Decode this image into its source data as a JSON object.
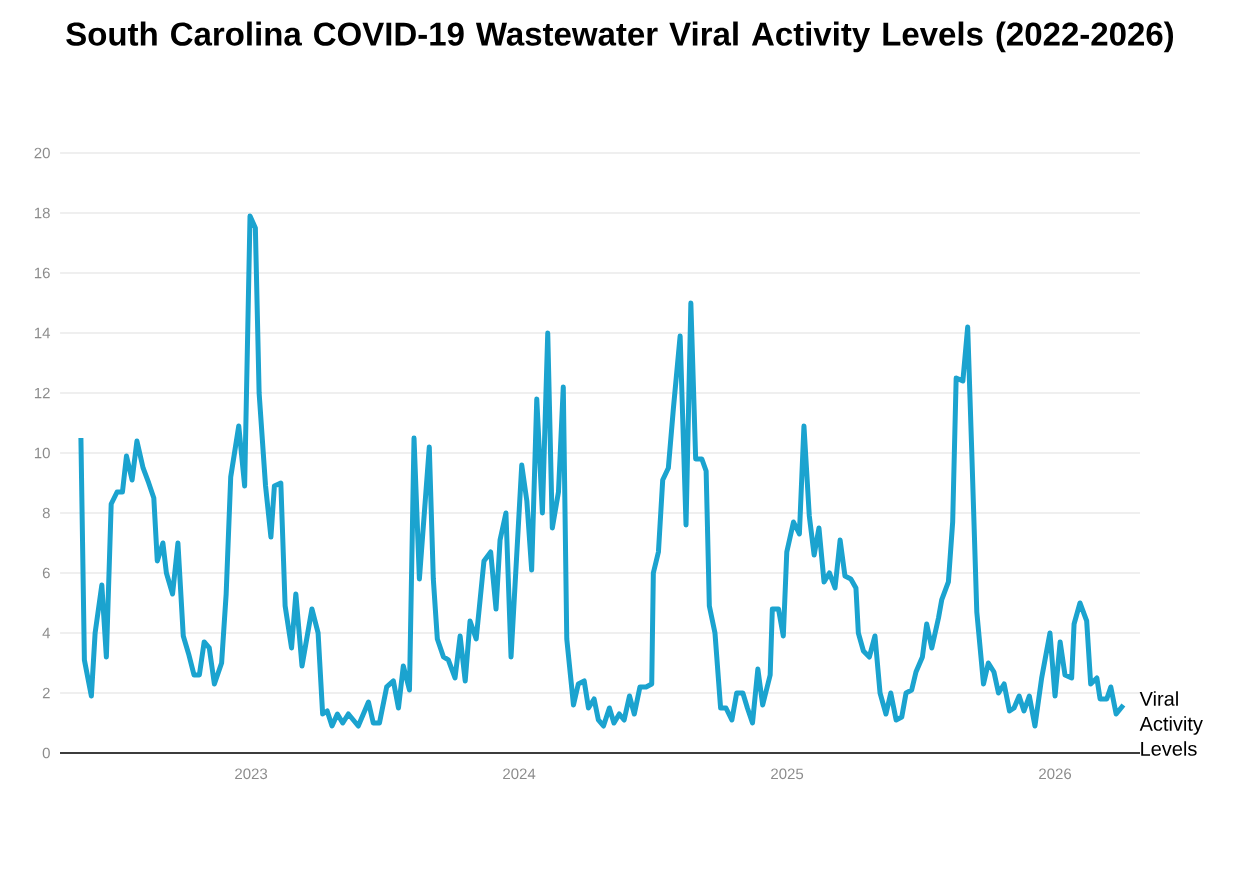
{
  "chart_data": {
    "type": "line",
    "title": "South Carolina COVID-19 Wastewater Viral Activity Levels (2022-2026)",
    "xlim": [
      2022.287,
      2026.317
    ],
    "xticks": [
      2023,
      2024,
      2025,
      2026
    ],
    "ylim": [
      0,
      20
    ],
    "yticks": [
      0,
      2,
      4,
      6,
      8,
      10,
      12,
      14,
      16,
      18,
      20
    ],
    "grid": "y",
    "series": [
      {
        "name": "Viral Activity Levels",
        "color": "#1ba3cf",
        "x": [
          2022.365,
          2022.378,
          2022.404,
          2022.418,
          2022.443,
          2022.46,
          2022.478,
          2022.5,
          2022.52,
          2022.535,
          2022.556,
          2022.574,
          2022.597,
          2022.618,
          2022.637,
          2022.65,
          2022.671,
          2022.684,
          2022.707,
          2022.727,
          2022.747,
          2022.767,
          2022.787,
          2022.807,
          2022.825,
          2022.844,
          2022.863,
          2022.89,
          2022.907,
          2022.924,
          2022.954,
          2022.976,
          2022.996,
          2023.016,
          2023.03,
          2023.054,
          2023.074,
          2023.087,
          2023.111,
          2023.127,
          2023.151,
          2023.167,
          2023.19,
          2023.227,
          2023.25,
          2023.267,
          2023.284,
          2023.302,
          2023.322,
          2023.342,
          2023.363,
          2023.4,
          2023.438,
          2023.456,
          2023.479,
          2023.506,
          2023.531,
          2023.55,
          2023.568,
          2023.591,
          2023.608,
          2023.628,
          2023.665,
          2023.68,
          2023.695,
          2023.718,
          2023.736,
          2023.761,
          2023.78,
          2023.799,
          2023.817,
          2023.84,
          2023.869,
          2023.894,
          2023.914,
          2023.929,
          2023.951,
          2023.97,
          2024.01,
          2024.029,
          2024.047,
          2024.066,
          2024.087,
          2024.107,
          2024.124,
          2024.147,
          2024.165,
          2024.178,
          2024.203,
          2024.221,
          2024.243,
          2024.259,
          2024.28,
          2024.296,
          2024.315,
          2024.337,
          2024.354,
          2024.374,
          2024.392,
          2024.412,
          2024.43,
          2024.451,
          2024.474,
          2024.495,
          2024.501,
          2024.52,
          2024.536,
          2024.557,
          2024.576,
          2024.601,
          2024.623,
          2024.641,
          2024.659,
          2024.682,
          2024.698,
          2024.71,
          2024.731,
          2024.752,
          2024.772,
          2024.794,
          2024.812,
          2024.835,
          2024.852,
          2024.871,
          2024.891,
          2024.909,
          2024.937,
          2024.945,
          2024.968,
          2024.986,
          2024.999,
          2025.024,
          2025.046,
          2025.063,
          2025.083,
          2025.101,
          2025.119,
          2025.138,
          2025.158,
          2025.179,
          2025.198,
          2025.216,
          2025.238,
          2025.257,
          2025.266,
          2025.285,
          2025.307,
          2025.328,
          2025.347,
          2025.369,
          2025.387,
          2025.407,
          2025.428,
          2025.444,
          2025.465,
          2025.481,
          2025.505,
          2025.521,
          2025.54,
          2025.565,
          2025.577,
          2025.602,
          2025.618,
          2025.631,
          2025.656,
          2025.674,
          2025.689,
          2025.708,
          2025.733,
          2025.751,
          2025.772,
          2025.789,
          2025.81,
          2025.83,
          2025.847,
          2025.866,
          2025.884,
          2025.904,
          2025.925,
          2025.95,
          2025.981,
          2026.0,
          2026.019,
          2026.037,
          2026.062,
          2026.071,
          2026.093,
          2026.118,
          2026.133,
          2026.156,
          2026.168,
          2026.193,
          2026.208,
          2026.228,
          2026.255
        ],
        "values": [
          10.5,
          3.1,
          1.9,
          4.0,
          5.6,
          3.2,
          8.3,
          8.7,
          8.7,
          9.9,
          9.1,
          10.4,
          9.5,
          9.0,
          8.5,
          6.4,
          7.0,
          6.0,
          5.3,
          7.0,
          3.9,
          3.3,
          2.6,
          2.6,
          3.7,
          3.5,
          2.3,
          3.0,
          5.3,
          9.2,
          10.9,
          8.9,
          17.9,
          17.5,
          12.0,
          8.9,
          7.2,
          8.9,
          9.0,
          4.9,
          3.5,
          5.3,
          2.9,
          4.8,
          4.0,
          1.3,
          1.4,
          0.9,
          1.3,
          1.0,
          1.3,
          0.9,
          1.7,
          1.0,
          1.0,
          2.2,
          2.4,
          1.5,
          2.9,
          2.1,
          10.5,
          5.8,
          10.2,
          5.8,
          3.8,
          3.2,
          3.1,
          2.5,
          3.9,
          2.4,
          4.4,
          3.8,
          6.4,
          6.7,
          4.8,
          7.1,
          8.0,
          3.2,
          9.6,
          8.4,
          6.1,
          11.8,
          8.0,
          14.0,
          7.5,
          8.7,
          12.2,
          3.8,
          1.6,
          2.3,
          2.4,
          1.5,
          1.8,
          1.1,
          0.9,
          1.5,
          1.0,
          1.3,
          1.1,
          1.9,
          1.3,
          2.2,
          2.2,
          2.3,
          6.0,
          6.7,
          9.1,
          9.5,
          11.5,
          13.9,
          7.6,
          15.0,
          9.8,
          9.8,
          9.4,
          4.9,
          4.0,
          1.5,
          1.5,
          1.1,
          2.0,
          2.0,
          1.5,
          1.0,
          2.8,
          1.6,
          2.6,
          4.8,
          4.8,
          3.9,
          6.7,
          7.7,
          7.3,
          10.9,
          7.9,
          6.6,
          7.5,
          5.7,
          6.0,
          5.5,
          7.1,
          5.9,
          5.8,
          5.5,
          4.0,
          3.4,
          3.2,
          3.9,
          2.0,
          1.3,
          2.0,
          1.1,
          1.2,
          2.0,
          2.1,
          2.7,
          3.2,
          4.3,
          3.5,
          4.5,
          5.1,
          5.7,
          7.7,
          12.5,
          12.4,
          14.2,
          10.1,
          4.7,
          2.3,
          3.0,
          2.7,
          2.0,
          2.3,
          1.4,
          1.5,
          1.9,
          1.4,
          1.9,
          0.9,
          2.5,
          4.0,
          1.9,
          3.7,
          2.6,
          2.5,
          4.3,
          5.0,
          4.4,
          2.3,
          2.5,
          1.8,
          1.8,
          2.2,
          1.3,
          1.6
        ]
      }
    ]
  }
}
